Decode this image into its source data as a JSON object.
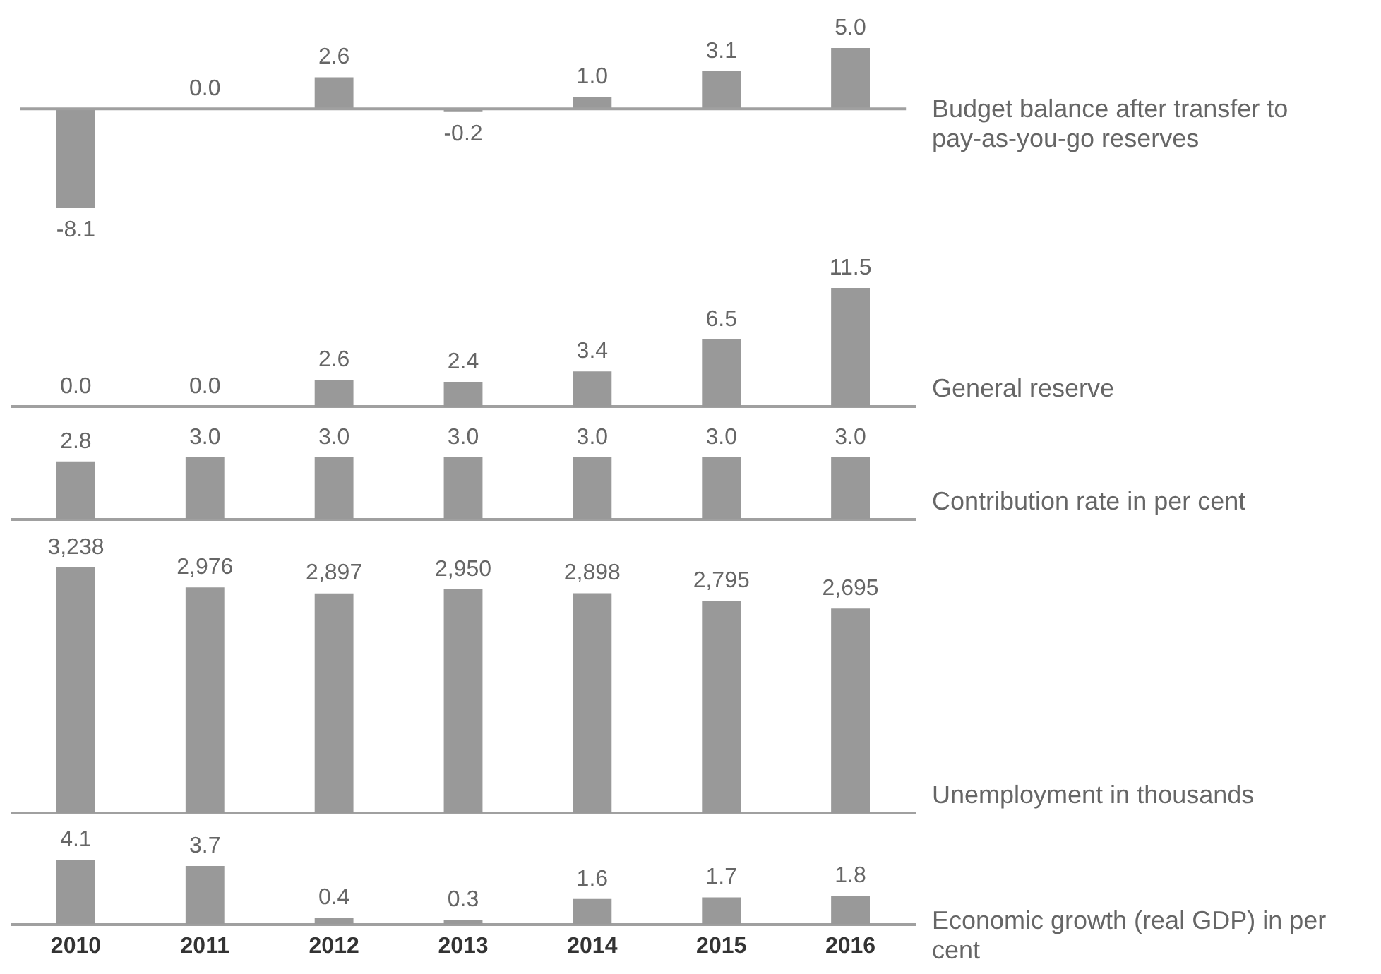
{
  "chart_data": [
    {
      "type": "bar",
      "y2label": "Budget balance after transfer to pay-as-you-go reserves",
      "categories": [
        "2010",
        "2011",
        "2012",
        "2013",
        "2014",
        "2015",
        "2016"
      ],
      "values": [
        -8.1,
        0.0,
        2.6,
        -0.2,
        1.0,
        3.1,
        5.0
      ],
      "value_labels": [
        "-8.1",
        "0.0",
        "2.6",
        "-0.2",
        "1.0",
        "3.1",
        "5.0"
      ],
      "color": "#999999",
      "tick_labels": false,
      "ref_lines": [
        {
          "axis": "y",
          "value": 0,
          "color": "#a0a0a0"
        }
      ]
    },
    {
      "type": "bar",
      "y2label": "General reserve",
      "categories": [
        "2010",
        "2011",
        "2012",
        "2013",
        "2014",
        "2015",
        "2016"
      ],
      "values": [
        0.0,
        0.0,
        2.6,
        2.4,
        3.4,
        6.5,
        11.5
      ],
      "value_labels": [
        "0.0",
        "0.0",
        "2.6",
        "2.4",
        "3.4",
        "6.5",
        "11.5"
      ],
      "color": "#999999",
      "tick_labels": false
    },
    {
      "type": "bar",
      "y2label": "Contribution rate in per cent",
      "categories": [
        "2010",
        "2011",
        "2012",
        "2013",
        "2014",
        "2015",
        "2016"
      ],
      "values": [
        2.8,
        3.0,
        3.0,
        3.0,
        3.0,
        3.0,
        3.0
      ],
      "value_labels": [
        "2.8",
        "3.0",
        "3.0",
        "3.0",
        "3.0",
        "3.0",
        "3.0"
      ],
      "color": "#999999",
      "tick_labels": false
    },
    {
      "type": "bar",
      "y2label": "Unemployment in thousands",
      "categories": [
        "2010",
        "2011",
        "2012",
        "2013",
        "2014",
        "2015",
        "2016"
      ],
      "values": [
        3238,
        2976,
        2897,
        2950,
        2898,
        2795,
        2695
      ],
      "value_labels": [
        "3,238",
        "2,976",
        "2,897",
        "2,950",
        "2,898",
        "2,795",
        "2,695"
      ],
      "color": "#999999",
      "tick_labels": false
    },
    {
      "type": "bar",
      "y2label": "Economic growth (real GDP) in per cent",
      "categories": [
        "2010",
        "2011",
        "2012",
        "2013",
        "2014",
        "2015",
        "2016"
      ],
      "values": [
        4.1,
        3.7,
        0.4,
        0.3,
        1.6,
        1.7,
        1.8
      ],
      "value_labels": [
        "4.1",
        "3.7",
        "0.4",
        "0.3",
        "1.6",
        "1.7",
        "1.8"
      ],
      "color": "#999999",
      "tick_labels": "x"
    }
  ]
}
